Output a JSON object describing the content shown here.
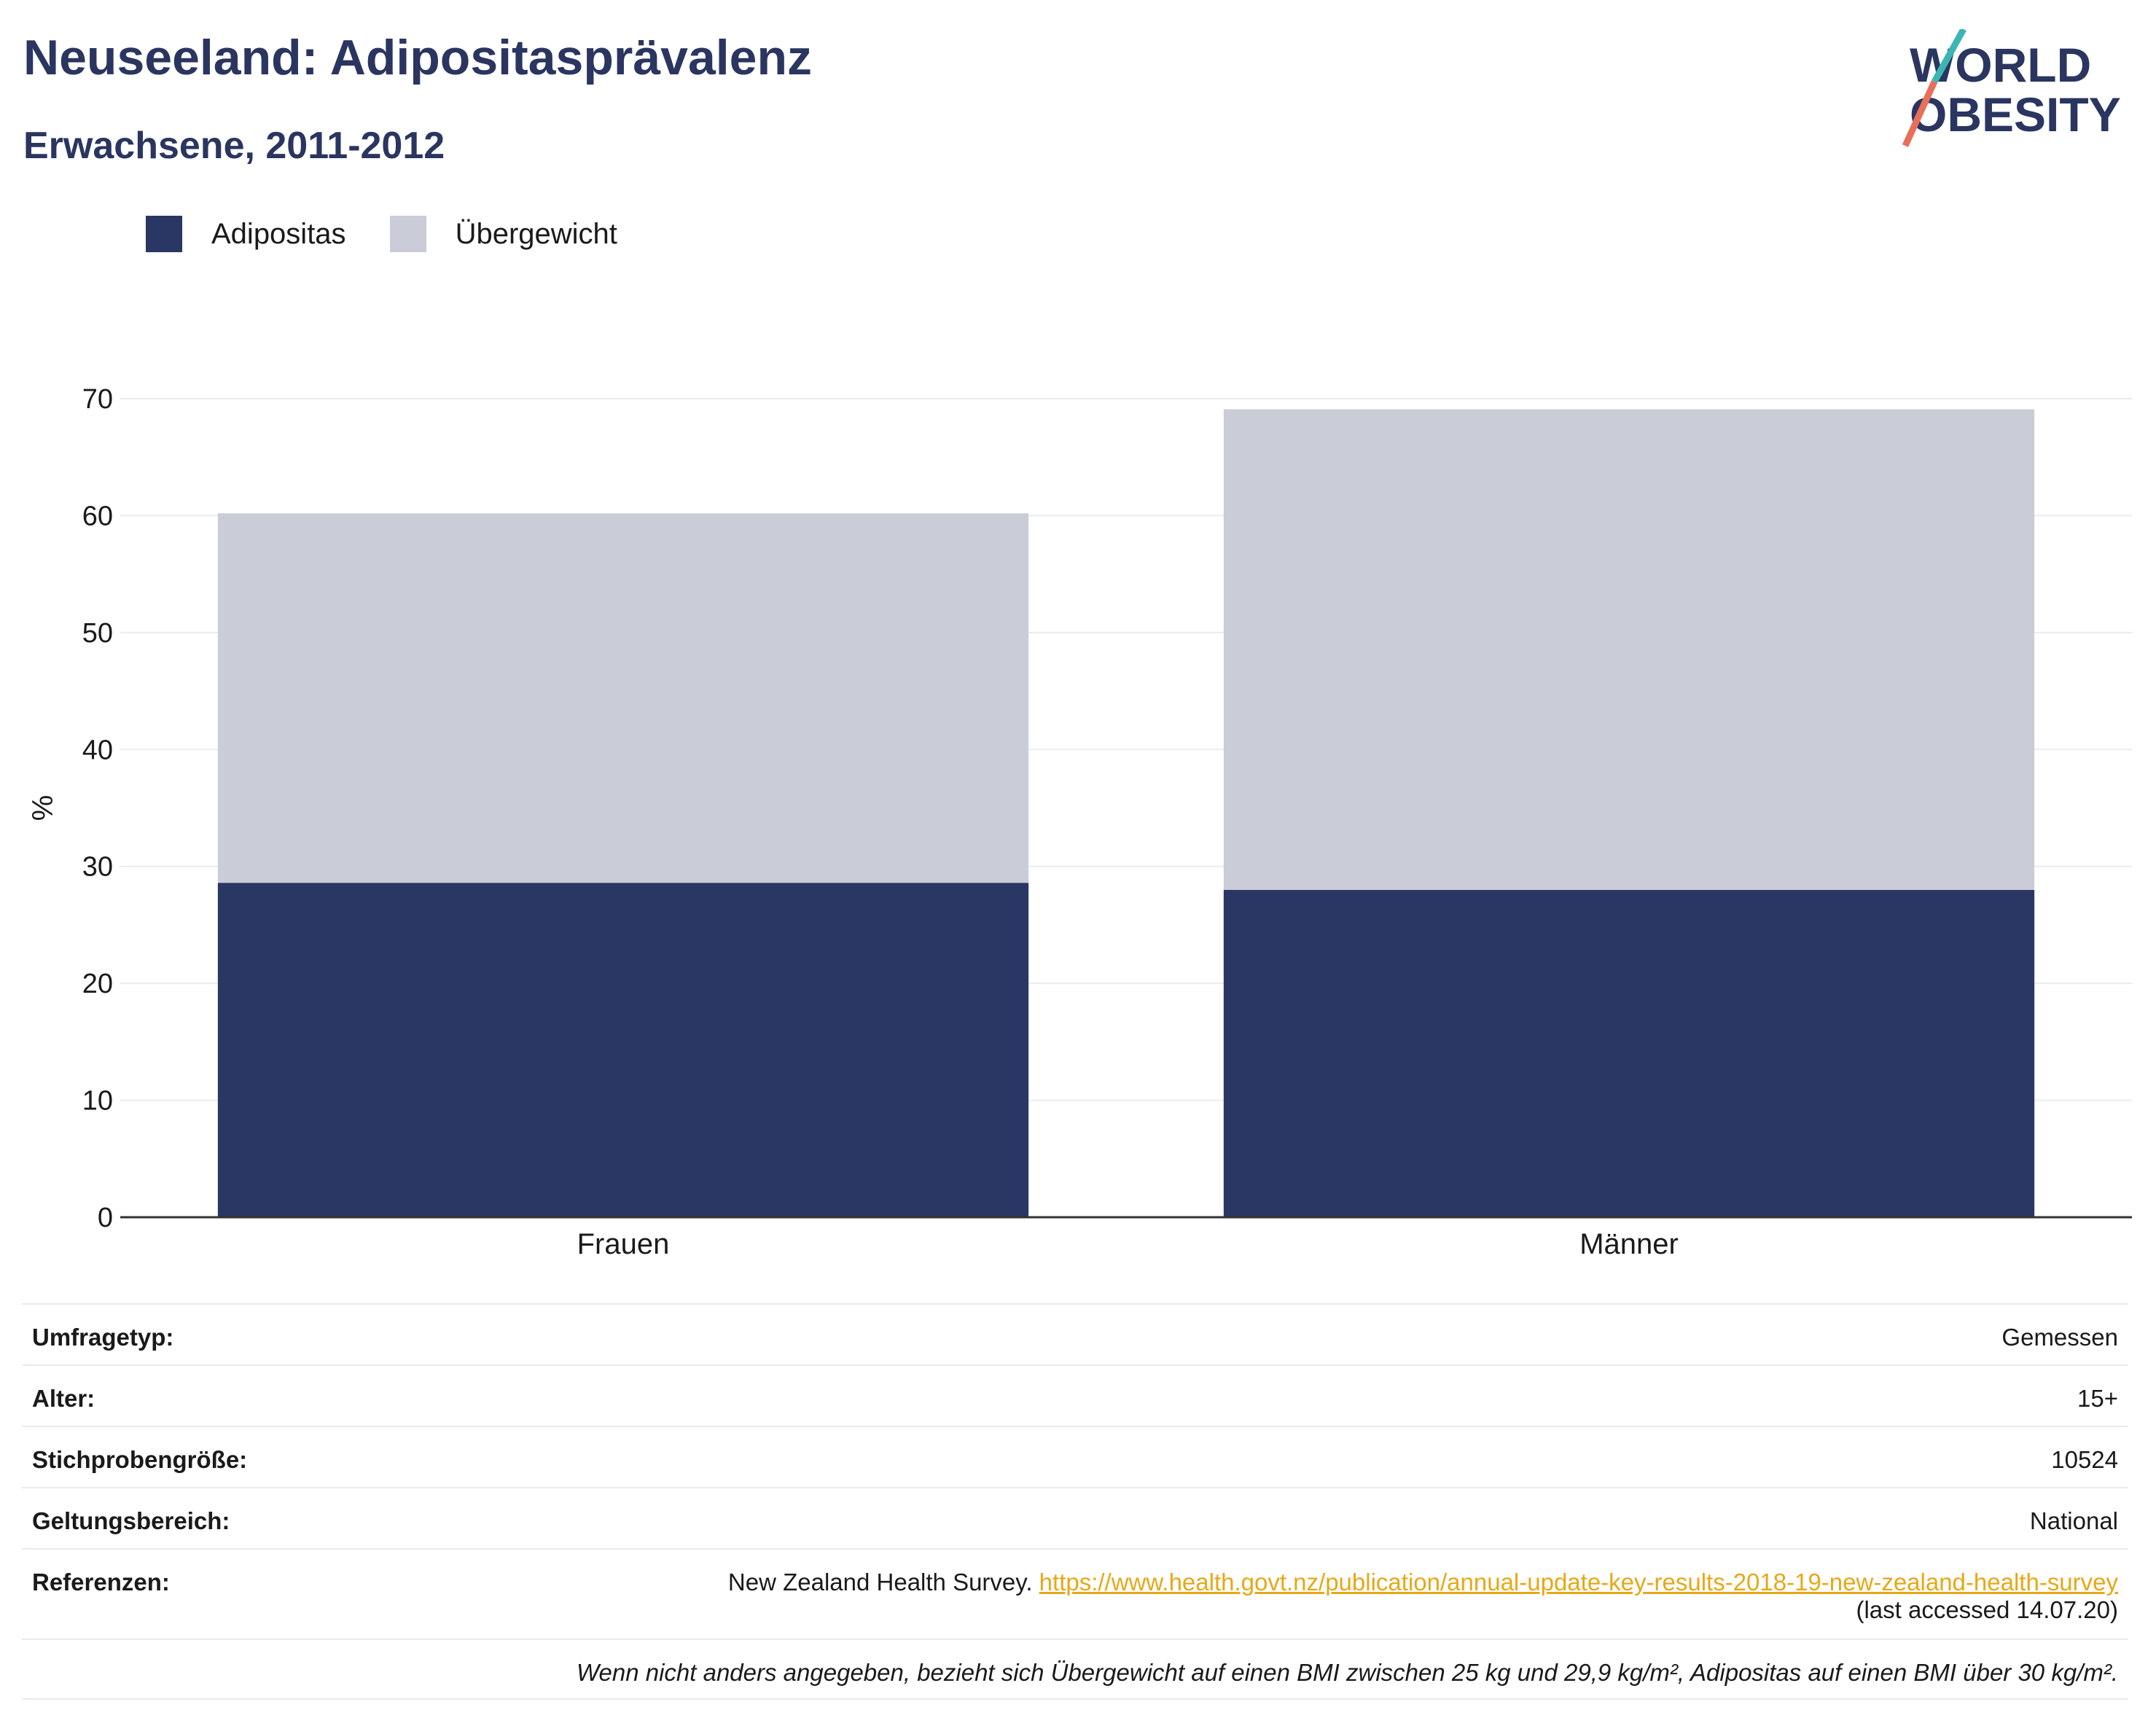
{
  "header": {
    "title": "Neuseeland: Adipositasprävalenz",
    "subtitle": "Erwachsene, 2011-2012",
    "logo_line1": "WORLD",
    "logo_line2": "OBESITY"
  },
  "legend": {
    "items": [
      {
        "label": "Adipositas",
        "color": "#2a3663"
      },
      {
        "label": "Übergewicht",
        "color": "#cacdd8"
      }
    ]
  },
  "chart_data": {
    "type": "bar",
    "stacked": true,
    "categories": [
      "Frauen",
      "Männer"
    ],
    "series": [
      {
        "name": "Adipositas",
        "values": [
          28.6,
          28.0
        ],
        "color": "#2a3663"
      },
      {
        "name": "Übergewicht",
        "values": [
          31.6,
          41.1
        ],
        "color": "#cacdd8"
      }
    ],
    "ylabel": "%",
    "ylim": [
      0,
      70
    ],
    "yticks": [
      0,
      10,
      20,
      30,
      40,
      50,
      60,
      70
    ],
    "grid": true,
    "legend_position": "top-left"
  },
  "info": {
    "survey_type": {
      "label": "Umfragetyp:",
      "value": "Gemessen"
    },
    "age": {
      "label": "Alter:",
      "value": "15+"
    },
    "sample_size": {
      "label": "Stichprobengröße:",
      "value": "10524"
    },
    "scope": {
      "label": "Geltungsbereich:",
      "value": "National"
    },
    "references": {
      "label": "Referenzen:",
      "text": "New Zealand Health Survey.",
      "link": "https://www.health.govt.nz/publication/annual-update-key-results-2018-19-new-zealand-health-survey",
      "accessed": "(last accessed 14.07.20)"
    },
    "note": "Wenn nicht anders angegeben, bezieht sich Übergewicht auf einen BMI zwischen 25 kg und 29,9 kg/m², Adipositas auf einen BMI über 30 kg/m²."
  }
}
